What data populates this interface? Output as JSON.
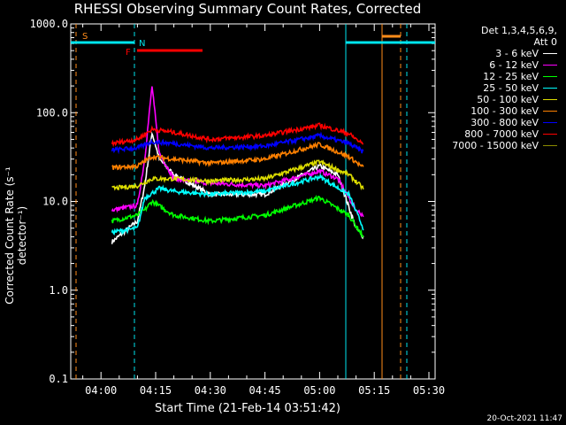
{
  "title": "RHESSI Observing Summary Count Rates, Corrected",
  "footer_timestamp": "20-Oct-2021 11:47",
  "legend_header": [
    "Det 1,3,4,5,6,9,",
    "Att 0"
  ],
  "colors": {
    "background": "#000000",
    "axes": "#ffffff",
    "night_markers": "#00e5ee",
    "saa_markers": "#ff8c1a",
    "flare_bar": "#ff0000"
  },
  "markers": {
    "saa_label": "S",
    "night_label": "N",
    "flare_label": "F"
  },
  "chart_data": {
    "type": "line",
    "title": "RHESSI Observing Summary Count Rates, Corrected",
    "xlabel": "Start Time (21-Feb-14 03:51:42)",
    "ylabel": "Corrected Count Rate (s⁻¹ detector⁻¹)",
    "ylim": [
      0.1,
      1000
    ],
    "y_scale": "log",
    "xlim": [
      "03:51:42",
      "05:31:42"
    ],
    "x_ticks": [
      "04:00",
      "04:15",
      "04:30",
      "04:45",
      "05:00",
      "05:15",
      "05:30"
    ],
    "y_ticks": [
      "0.1",
      "1.0",
      "10.0",
      "100.0",
      "1000.0"
    ],
    "grid": false,
    "legend_position": "right",
    "series": [
      {
        "name": "3 - 6 keV",
        "color": "#ffffff",
        "x": [
          "04:03",
          "04:10",
          "04:12",
          "04:14",
          "04:16",
          "04:20",
          "04:30",
          "04:45",
          "05:00",
          "05:05",
          "05:10",
          "05:12"
        ],
        "y": [
          3.5,
          6,
          15,
          60,
          30,
          20,
          12,
          12,
          25,
          20,
          5,
          4
        ]
      },
      {
        "name": "6 - 12 keV",
        "color": "#ff00ff",
        "x": [
          "04:03",
          "04:10",
          "04:12",
          "04:14",
          "04:16",
          "04:20",
          "04:30",
          "04:45",
          "05:00",
          "05:05",
          "05:10",
          "05:12"
        ],
        "y": [
          8,
          9,
          30,
          200,
          35,
          18,
          16,
          15,
          22,
          18,
          8,
          7
        ]
      },
      {
        "name": "12 - 25 keV",
        "color": "#00ff00",
        "x": [
          "04:03",
          "04:10",
          "04:12",
          "04:14",
          "04:20",
          "04:30",
          "04:45",
          "05:00",
          "05:08",
          "05:12"
        ],
        "y": [
          6,
          7,
          8,
          10,
          7,
          6,
          7,
          11,
          7,
          4
        ]
      },
      {
        "name": "25 - 50 keV",
        "color": "#00ffff",
        "x": [
          "04:03",
          "04:10",
          "04:12",
          "04:16",
          "04:20",
          "04:30",
          "04:45",
          "05:00",
          "05:08",
          "05:12"
        ],
        "y": [
          4.5,
          5,
          11,
          14,
          13,
          12,
          13,
          19,
          12,
          5
        ]
      },
      {
        "name": "50 - 100 keV",
        "color": "#dddd00",
        "x": [
          "04:03",
          "04:10",
          "04:14",
          "04:20",
          "04:30",
          "04:45",
          "05:00",
          "05:08",
          "05:12"
        ],
        "y": [
          14,
          15,
          18,
          18,
          17,
          18,
          28,
          20,
          14
        ]
      },
      {
        "name": "100 - 300 keV",
        "color": "#ff8000",
        "x": [
          "04:03",
          "04:10",
          "04:14",
          "04:20",
          "04:30",
          "04:45",
          "05:00",
          "05:08",
          "05:12"
        ],
        "y": [
          24,
          25,
          32,
          30,
          27,
          30,
          44,
          32,
          24
        ]
      },
      {
        "name": "300 - 800 keV",
        "color": "#0000ff",
        "x": [
          "04:03",
          "04:10",
          "04:14",
          "04:20",
          "04:30",
          "04:45",
          "05:00",
          "05:08",
          "05:12"
        ],
        "y": [
          38,
          40,
          47,
          45,
          40,
          42,
          55,
          45,
          36
        ]
      },
      {
        "name": "800 - 7000 keV",
        "color": "#ff0000",
        "x": [
          "04:03",
          "04:10",
          "04:14",
          "04:20",
          "04:30",
          "04:45",
          "05:00",
          "05:08",
          "05:12"
        ],
        "y": [
          45,
          50,
          65,
          60,
          50,
          55,
          72,
          58,
          44
        ]
      },
      {
        "name": "7000 - 15000 keV",
        "color": "#8b8b00",
        "x": [],
        "y": []
      }
    ]
  }
}
